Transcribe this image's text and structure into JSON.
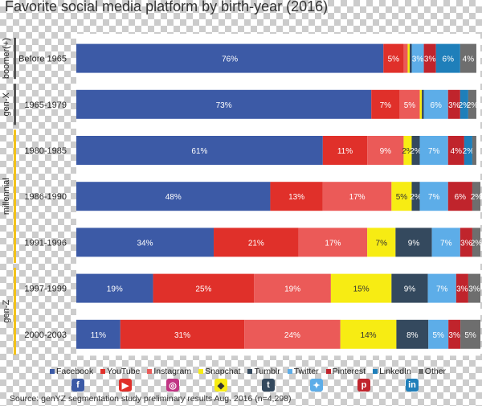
{
  "title": "Favorite social media platform by birth-year (2016)",
  "source": "Source: genYZ segmentation study preliminary results Aug. 2016  (n=4,298)",
  "icons": [
    "facebook-icon",
    "youtube-icon",
    "instagram-icon",
    "snapchat-icon",
    "tumblr-icon",
    "twitter-icon",
    "pinterest-icon",
    "linkedin-icon"
  ],
  "chart_data": {
    "type": "bar",
    "orientation": "horizontal",
    "stacked": true,
    "title": "Favorite social media platform by birth-year (2016)",
    "xlabel": "",
    "ylabel": "",
    "xlim": [
      0,
      100
    ],
    "categories": [
      "Before 1965",
      "1965-1979",
      "1980-1985",
      "1986-1990",
      "1991-1996",
      "1997-1999",
      "2000-2003"
    ],
    "generations": [
      {
        "label": "boomer(+)",
        "rows": [
          0,
          0
        ],
        "color": "#555555"
      },
      {
        "label": "gen-X",
        "rows": [
          1,
          1
        ],
        "color": "#555555"
      },
      {
        "label": "millennial",
        "rows": [
          2,
          4
        ],
        "color": "#f2c21b"
      },
      {
        "label": "gen-Z",
        "rows": [
          5,
          6
        ],
        "color": "#f2c21b"
      }
    ],
    "series": [
      {
        "name": "Facebook",
        "color": "#3c5aa6",
        "values": [
          76,
          73,
          61,
          48,
          34,
          19,
          11
        ],
        "labels": [
          "76%",
          "73%",
          "61%",
          "48%",
          "34%",
          "19%",
          "11%"
        ]
      },
      {
        "name": "YouTube",
        "color": "#e0302a",
        "values": [
          5,
          7,
          11,
          13,
          21,
          25,
          31
        ],
        "labels": [
          "5%",
          "7%",
          "11%",
          "13%",
          "21%",
          "25%",
          "31%"
        ]
      },
      {
        "name": "Instagram",
        "color": "#eb5a58",
        "values": [
          1,
          5,
          9,
          17,
          17,
          19,
          24
        ],
        "labels": [
          "",
          "5%",
          "9%",
          "17%",
          "17%",
          "19%",
          "24%"
        ]
      },
      {
        "name": "Snapchat",
        "color": "#f7ec13",
        "values": [
          0.5,
          0.5,
          2,
          5,
          7,
          15,
          14
        ],
        "labels": [
          "",
          "",
          "2%",
          "5%",
          "7%",
          "15%",
          "14%"
        ]
      },
      {
        "name": "Tumblr",
        "color": "#34495e",
        "values": [
          0.5,
          0.5,
          2,
          2,
          9,
          9,
          8
        ],
        "labels": [
          "",
          "",
          "2%",
          "2%",
          "9%",
          "9%",
          "8%"
        ]
      },
      {
        "name": "Twitter",
        "color": "#5dade8",
        "values": [
          3,
          6,
          7,
          7,
          7,
          7,
          5
        ],
        "labels": [
          "3%",
          "6%",
          "7%",
          "7%",
          "7%",
          "7%",
          "5%"
        ]
      },
      {
        "name": "Pinterest",
        "color": "#c0242c",
        "values": [
          3,
          3,
          4,
          6,
          3,
          3,
          3
        ],
        "labels": [
          "3%",
          "3%",
          "4%",
          "6%",
          "3%",
          "3%",
          "3%"
        ]
      },
      {
        "name": "LinkedIn",
        "color": "#1f7fba",
        "values": [
          6,
          2,
          2,
          0,
          0,
          0,
          0
        ],
        "labels": [
          "6%",
          "2%",
          "2%",
          "",
          "",
          "",
          ""
        ]
      },
      {
        "name": "Other",
        "color": "#6e6e6e",
        "values": [
          4,
          2,
          1,
          2,
          2,
          3,
          5
        ],
        "labels": [
          "4%",
          "2%",
          "",
          "2%",
          "2%",
          "3%",
          "5%"
        ]
      }
    ]
  }
}
